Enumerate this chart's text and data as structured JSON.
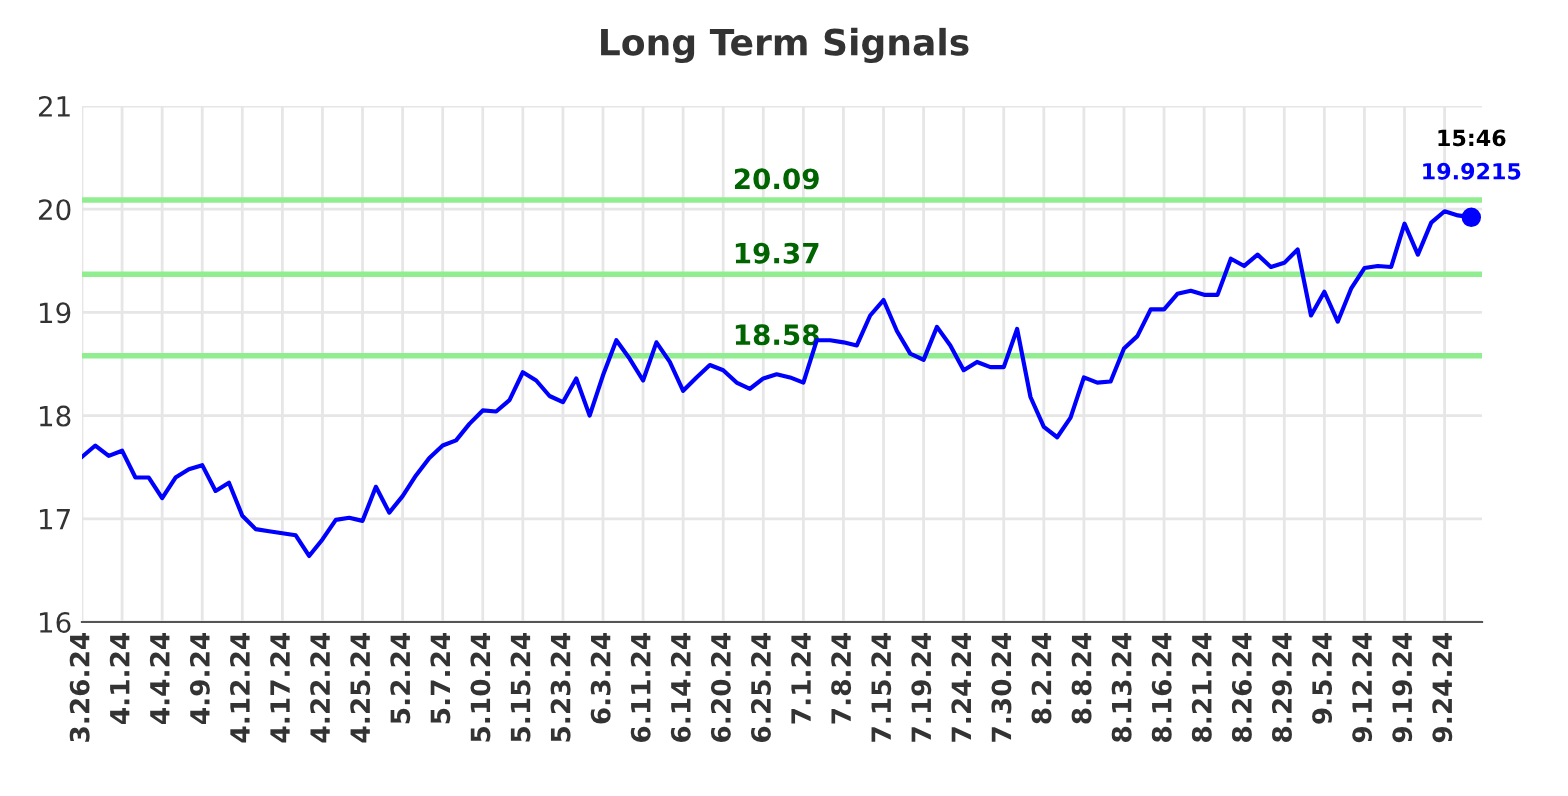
{
  "chart_data": {
    "type": "line",
    "title": "Long Term Signals",
    "categories": [
      "3.26.24",
      null,
      null,
      "4.1.24",
      null,
      null,
      "4.4.24",
      null,
      null,
      "4.9.24",
      null,
      null,
      "4.12.24",
      null,
      null,
      "4.17.24",
      null,
      null,
      "4.22.24",
      null,
      null,
      "4.25.24",
      null,
      null,
      "5.2.24",
      null,
      null,
      "5.7.24",
      null,
      null,
      "5.10.24",
      null,
      null,
      "5.15.24",
      null,
      null,
      "5.23.24",
      null,
      null,
      "6.3.24",
      null,
      null,
      "6.11.24",
      null,
      null,
      "6.14.24",
      null,
      null,
      "6.20.24",
      null,
      null,
      "6.25.24",
      null,
      null,
      "7.1.24",
      null,
      null,
      "7.8.24",
      null,
      null,
      "7.15.24",
      null,
      null,
      "7.19.24",
      null,
      null,
      "7.24.24",
      null,
      null,
      "7.30.24",
      null,
      null,
      "8.2.24",
      null,
      null,
      "8.8.24",
      null,
      null,
      "8.13.24",
      null,
      null,
      "8.16.24",
      null,
      null,
      "8.21.24",
      null,
      null,
      "8.26.24",
      null,
      null,
      "8.29.24",
      null,
      null,
      "9.5.24",
      null,
      null,
      "9.12.24",
      null,
      null,
      "9.19.24",
      null,
      null,
      "9.24.24",
      null,
      null
    ],
    "series": [
      {
        "color": "#0000ff",
        "values": [
          17.6,
          17.71,
          17.61,
          17.66,
          17.4,
          17.4,
          17.2,
          17.4,
          17.48,
          17.52,
          17.27,
          17.35,
          17.03,
          16.9,
          16.88,
          16.86,
          16.84,
          16.64,
          16.8,
          16.99,
          17.01,
          16.98,
          17.31,
          17.06,
          17.22,
          17.42,
          17.59,
          17.71,
          17.76,
          17.92,
          18.05,
          18.04,
          18.15,
          18.42,
          18.34,
          18.19,
          18.13,
          18.36,
          18.0,
          18.39,
          18.73,
          18.55,
          18.34,
          18.71,
          18.52,
          18.24,
          18.37,
          18.49,
          18.44,
          18.32,
          18.26,
          18.36,
          18.4,
          18.37,
          18.32,
          18.73,
          18.73,
          18.71,
          18.68,
          18.97,
          19.12,
          18.82,
          18.6,
          18.54,
          18.86,
          18.68,
          18.44,
          18.52,
          18.47,
          18.47,
          18.84,
          18.18,
          17.89,
          17.79,
          17.98,
          18.37,
          18.32,
          18.33,
          18.65,
          18.77,
          19.03,
          19.03,
          19.18,
          19.21,
          19.17,
          19.17,
          19.52,
          19.45,
          19.56,
          19.44,
          19.48,
          19.61,
          18.97,
          19.2,
          18.91,
          19.23,
          19.43,
          19.45,
          19.44,
          19.86,
          19.56,
          19.87,
          19.98,
          19.94,
          19.9215
        ],
        "value_labels": [
          null,
          null,
          null,
          null,
          null,
          null,
          null,
          null,
          null,
          null,
          null,
          null,
          null,
          null,
          null,
          null,
          null,
          null,
          null,
          null,
          null,
          null,
          null,
          null,
          null,
          null,
          null,
          null,
          null,
          null,
          null,
          null,
          null,
          null,
          null,
          null,
          null,
          null,
          null,
          null,
          null,
          null,
          null,
          null,
          null,
          null,
          null,
          null,
          null,
          null,
          null,
          null,
          null,
          null,
          null,
          null,
          null,
          null,
          null,
          null,
          null,
          null,
          null,
          null,
          null,
          null,
          null,
          null,
          null,
          null,
          null,
          null,
          null,
          null,
          null,
          null,
          null,
          null,
          null,
          null,
          null,
          null,
          null,
          null,
          null,
          null,
          null,
          null,
          null,
          null,
          null,
          null,
          null,
          null,
          null,
          null,
          null,
          null,
          null,
          null,
          null,
          null,
          null,
          null,
          "19.9215"
        ]
      }
    ],
    "annotations": [
      "15:46"
    ],
    "ref_lines": [
      {
        "axis": "y",
        "value": 20.09,
        "label": "20.09",
        "color": "#90ee90"
      },
      {
        "axis": "y",
        "value": 19.37,
        "label": "19.37",
        "color": "#90ee90"
      },
      {
        "axis": "y",
        "value": 18.58,
        "label": "18.58",
        "color": "#90ee90"
      }
    ],
    "ylim": [
      16,
      21
    ],
    "yticks": [
      16,
      17,
      18,
      19,
      20,
      21
    ],
    "grid": true
  }
}
